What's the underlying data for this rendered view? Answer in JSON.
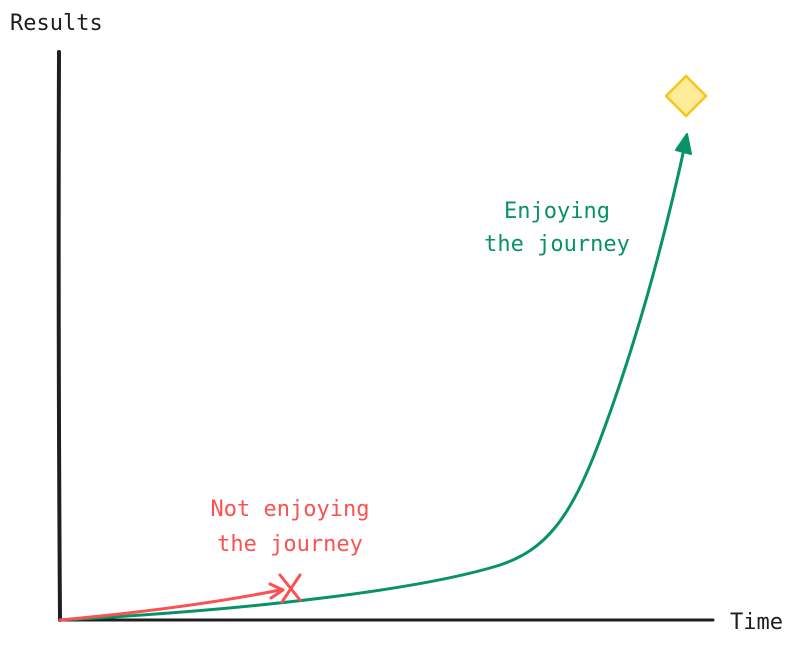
{
  "axes": {
    "y_label": "Results",
    "x_label": "Time"
  },
  "annotations": [
    {
      "name": "enjoying",
      "lines": [
        "Enjoying",
        "the journey"
      ]
    },
    {
      "name": "not-enjoying",
      "lines": [
        "Not enjoying",
        "the journey"
      ]
    }
  ]
}
